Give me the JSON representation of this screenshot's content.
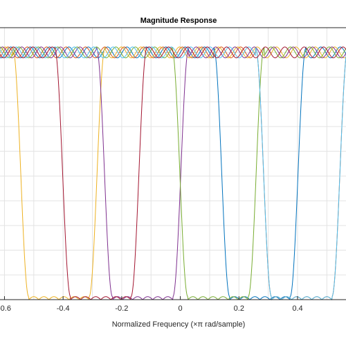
{
  "chart_data": {
    "type": "line",
    "title": "Magnitude Response",
    "xlabel": "Normalized Frequency (×π rad/sample)",
    "ylabel": "",
    "xlim": [
      -0.62,
      0.57
    ],
    "ylim": [
      0,
      1.1
    ],
    "x_ticks": [
      -0.6,
      -0.4,
      -0.2,
      0,
      0.2,
      0.4
    ],
    "x_tick_labels": [
      "-0.6",
      "-0.4",
      "-0.2",
      "0",
      "0.2",
      "0.4"
    ],
    "grid": true,
    "series": [
      {
        "color": "#0072BD",
        "stopband": [
          0.1686,
          0.3743
        ]
      },
      {
        "color": "#D95319",
        "stopband": [
          0.3114,
          0.5171
        ]
      },
      {
        "color": "#EDB120",
        "stopband": [
          -0.5171,
          -0.3114
        ]
      },
      {
        "color": "#7E2F8E",
        "stopband": [
          -0.2314,
          -0.0257
        ]
      },
      {
        "color": "#77AC30",
        "stopband": [
          0.0257,
          0.2314
        ]
      },
      {
        "color": "#4DBEEE",
        "stopband": [
          0.3114,
          0.5171
        ]
      },
      {
        "color": "#A2142F",
        "stopband": [
          -0.3743,
          -0.1686
        ]
      }
    ]
  }
}
